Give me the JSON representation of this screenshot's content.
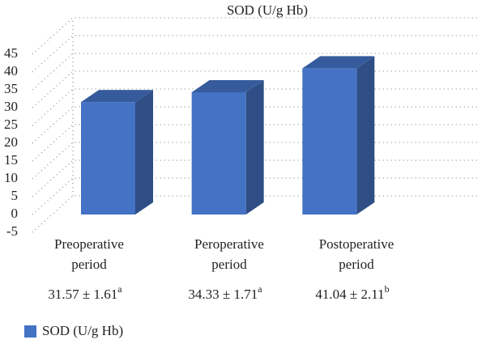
{
  "chart_data": {
    "type": "bar3d",
    "title": "SOD (U/g Hb)",
    "categories": [
      [
        "Preoperative",
        "period"
      ],
      [
        "Peroperative",
        "period"
      ],
      [
        "Postoperative",
        "period"
      ]
    ],
    "series": [
      {
        "name": "SOD (U/g Hb)",
        "color": "#4472c4",
        "values": [
          31.57,
          34.33,
          41.04
        ]
      }
    ],
    "value_labels": [
      "31.57 ± 1.61",
      "34.33 ± 1.71",
      "41.04 ± 2.11"
    ],
    "annotations": [
      "a",
      "a",
      "b"
    ],
    "ylim": [
      -5,
      45
    ],
    "yticks": [
      -5,
      0,
      5,
      10,
      15,
      20,
      25,
      30,
      35,
      40,
      45
    ],
    "grid": true,
    "legend": "bottom-left"
  }
}
